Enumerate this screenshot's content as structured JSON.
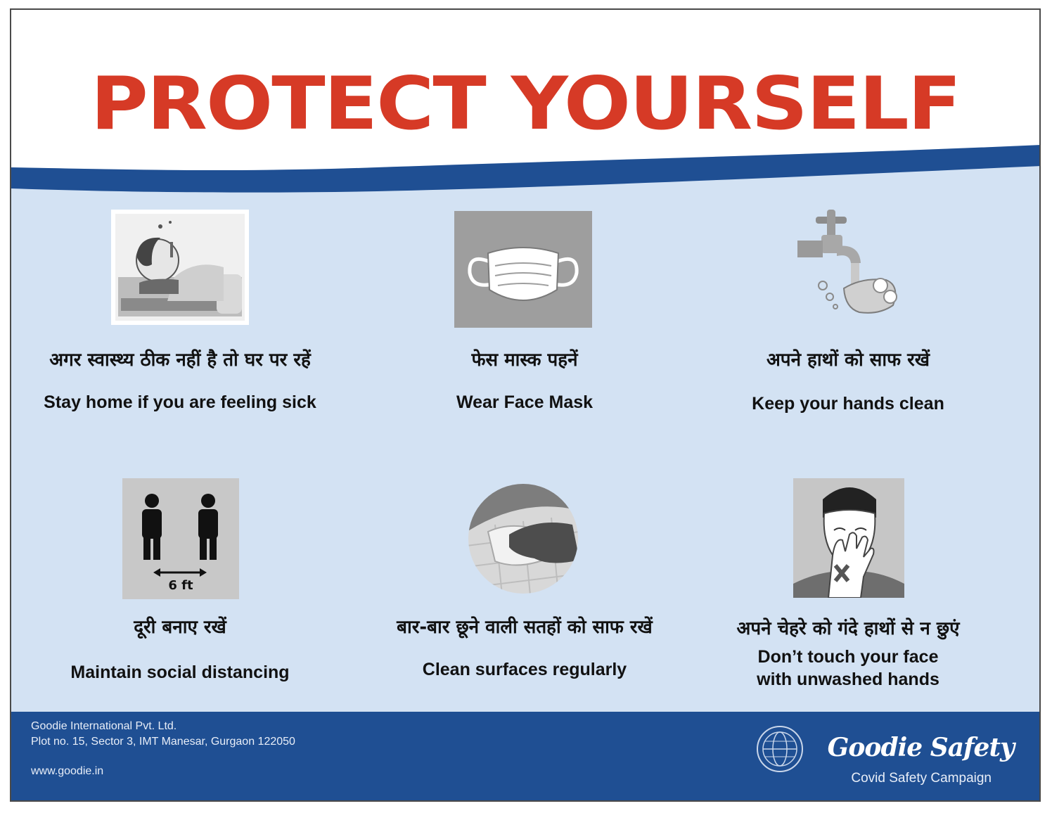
{
  "poster": {
    "title": "PROTECT YOURSELF",
    "colors": {
      "title_red": "#d63a26",
      "band_blue": "#1f4f93",
      "panel_blue": "#d3e2f3"
    }
  },
  "tiles": [
    {
      "icon": "sick-in-bed-icon",
      "hindi": "अगर स्वास्थ्य ठीक नहीं है  तो घर पर रहें",
      "english": "Stay home if you are feeling sick"
    },
    {
      "icon": "face-mask-icon",
      "hindi": "फेस मास्क पहनें",
      "english": "Wear Face Mask"
    },
    {
      "icon": "hand-washing-icon",
      "hindi": "अपने हाथों को साफ रखें",
      "english": "Keep your hands clean"
    },
    {
      "icon": "social-distance-icon",
      "hindi": "दूरी बनाए रखें",
      "english": "Maintain social distancing",
      "distance_label": "6 ft"
    },
    {
      "icon": "surface-cleaning-icon",
      "hindi": "बार-बार छूने वाली सतहों को साफ रखें",
      "english": "Clean surfaces regularly"
    },
    {
      "icon": "no-face-touch-icon",
      "hindi": "अपने चेहरे को गंदे हाथों से न छुएं",
      "english": "Don’t touch your face with unwashed hands"
    }
  ],
  "footer": {
    "company": "Goodie International Pvt. Ltd.",
    "address": "Plot no. 15, Sector 3, IMT Manesar, Gurgaon 122050",
    "website": "www.goodie.in",
    "brand": "Goodie Safety",
    "campaign": "Covid Safety Campaign",
    "logo_icon": "globe-logo-icon"
  }
}
